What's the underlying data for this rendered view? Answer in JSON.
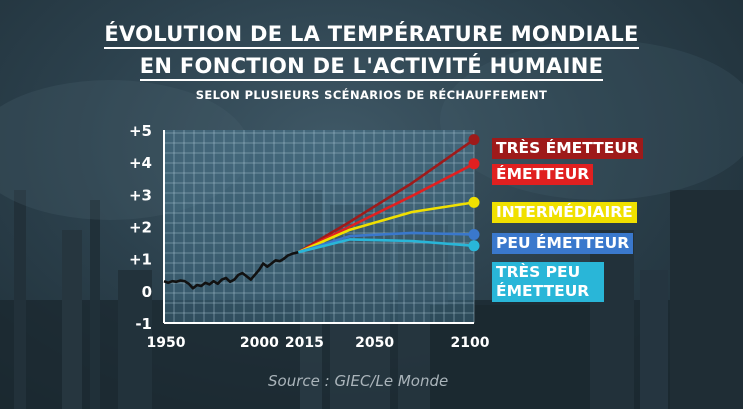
{
  "header": {
    "title_line1": "ÉVOLUTION DE LA TEMPÉRATURE MONDIALE",
    "title_line2": "EN FONCTION DE L'ACTIVITÉ HUMAINE",
    "subtitle": "SELON PLUSIEURS SCÉNARIOS DE RÉCHAUFFEMENT"
  },
  "source": "Source : GIEC/Le Monde",
  "chart_data": {
    "type": "line",
    "title": "ÉVOLUTION DE LA TEMPÉRATURE MONDIALE EN FONCTION DE L'ACTIVITÉ HUMAINE",
    "subtitle": "SELON PLUSIEURS SCÉNARIOS DE RÉCHAUFFEMENT",
    "xlabel": "",
    "ylabel": "",
    "xlim": [
      1950,
      2100
    ],
    "ylim": [
      -1,
      5
    ],
    "grid": true,
    "legend_placement": "right",
    "y_ticks": [
      {
        "value": 5,
        "label": "+5"
      },
      {
        "value": 4,
        "label": "+4"
      },
      {
        "value": 3,
        "label": "+3"
      },
      {
        "value": 2,
        "label": "+2"
      },
      {
        "value": 1,
        "label": "+1"
      },
      {
        "value": 0,
        "label": "0"
      },
      {
        "value": -1,
        "label": "-1"
      }
    ],
    "x_ticks": [
      {
        "value": 1950,
        "label": "1950"
      },
      {
        "value": 2000,
        "label": "2000"
      },
      {
        "value": 2015,
        "label": "2015"
      },
      {
        "value": 2050,
        "label": "2050"
      },
      {
        "value": 2100,
        "label": "2100"
      }
    ],
    "historical": {
      "color": "#111111",
      "x": [
        1950,
        1952,
        1954,
        1956,
        1958,
        1960,
        1962,
        1964,
        1966,
        1968,
        1970,
        1972,
        1974,
        1976,
        1978,
        1980,
        1982,
        1984,
        1986,
        1988,
        1990,
        1992,
        1994,
        1996,
        1998,
        2000,
        2002,
        2004,
        2006,
        2008,
        2010,
        2012,
        2015
      ],
      "y": [
        0.3,
        0.25,
        0.3,
        0.28,
        0.32,
        0.3,
        0.22,
        0.08,
        0.18,
        0.15,
        0.25,
        0.2,
        0.3,
        0.22,
        0.35,
        0.4,
        0.28,
        0.35,
        0.5,
        0.55,
        0.45,
        0.35,
        0.5,
        0.65,
        0.85,
        0.75,
        0.85,
        0.95,
        0.92,
        1.0,
        1.1,
        1.15,
        1.2
      ]
    },
    "series": [
      {
        "name": "TRÈS ÉMETTEUR",
        "color": "#9e1a1a",
        "x": [
          2015,
          2040,
          2070,
          2100
        ],
        "y": [
          1.2,
          2.15,
          3.35,
          4.7
        ]
      },
      {
        "name": "ÉMETTEUR",
        "color": "#e02020",
        "x": [
          2015,
          2040,
          2070,
          2100
        ],
        "y": [
          1.2,
          2.0,
          2.95,
          3.95
        ]
      },
      {
        "name": "INTERMÉDIAIRE",
        "color": "#f0e000",
        "x": [
          2015,
          2040,
          2070,
          2100
        ],
        "y": [
          1.2,
          1.9,
          2.45,
          2.75
        ]
      },
      {
        "name": "PEU ÉMETTEUR",
        "color": "#3a78cc",
        "x": [
          2015,
          2040,
          2070,
          2100
        ],
        "y": [
          1.2,
          1.7,
          1.8,
          1.75
        ]
      },
      {
        "name": "TRÈS PEU ÉMETTEUR",
        "color": "#29b6d8",
        "x": [
          2015,
          2040,
          2070,
          2100
        ],
        "y": [
          1.2,
          1.6,
          1.55,
          1.4
        ]
      }
    ]
  }
}
